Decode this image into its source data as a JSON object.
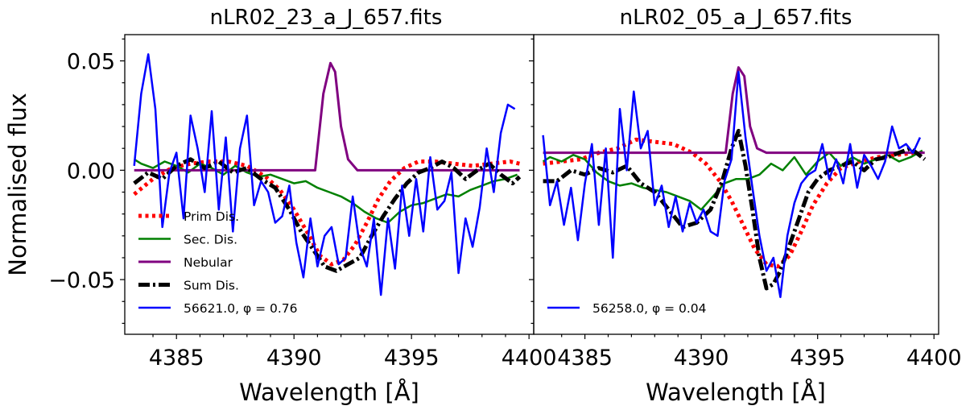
{
  "chart_data": [
    {
      "type": "line",
      "title": "nLR02_23_a_J_657.fits",
      "xlabel": "Wavelength [Å]",
      "ylabel": "Normalised flux",
      "xlim": [
        4382.8,
        4400.2
      ],
      "ylim": [
        -0.075,
        0.062
      ],
      "xticks": [
        4385,
        4390,
        4395,
        4400
      ],
      "xtick_labels": [
        "4385",
        "4390",
        "4395",
        "4400"
      ],
      "yticks": [
        0.05,
        0.0,
        -0.05
      ],
      "ytick_labels": [
        "0.05",
        "0.00",
        "−0.05"
      ],
      "legend_position": "lower-left",
      "series": [
        {
          "name": "Prim Dis.",
          "legend_label": "Prim Dis.",
          "color": "#ff0000",
          "style": "dotted",
          "width": 5,
          "x": [
            4383.2,
            4384.0,
            4384.8,
            4385.6,
            4386.4,
            4387.2,
            4388.0,
            4388.8,
            4389.4,
            4390.0,
            4390.6,
            4391.1,
            4391.6,
            4392.1,
            4392.6,
            4393.1,
            4393.6,
            4394.1,
            4394.7,
            4395.3,
            4396.0,
            4396.8,
            4397.6,
            4398.4,
            4399.2,
            4399.6
          ],
          "y": [
            -0.011,
            -0.004,
            0.001,
            0.003,
            0.004,
            0.004,
            0.002,
            -0.003,
            -0.009,
            -0.018,
            -0.029,
            -0.039,
            -0.043,
            -0.041,
            -0.034,
            -0.024,
            -0.013,
            -0.005,
            0.001,
            0.004,
            0.004,
            0.003,
            0.002,
            0.003,
            0.004,
            0.003
          ]
        },
        {
          "name": "Sec. Dis.",
          "legend_label": "Sec. Dis.",
          "color": "#008000",
          "style": "solid",
          "width": 2.5,
          "x": [
            4383.2,
            4383.5,
            4384.0,
            4384.5,
            4385.0,
            4385.5,
            4386.0,
            4386.5,
            4387.0,
            4387.5,
            4388.0,
            4388.5,
            4389.0,
            4389.5,
            4390.0,
            4390.5,
            4391.0,
            4391.5,
            4392.0,
            4392.5,
            4393.0,
            4393.5,
            4394.0,
            4394.5,
            4395.0,
            4395.5,
            4396.0,
            4396.5,
            4397.0,
            4397.5,
            4398.0,
            4398.5,
            4399.0,
            4399.5
          ],
          "y": [
            0.005,
            0.003,
            0.001,
            0.004,
            0.002,
            -0.001,
            0.003,
            0.001,
            -0.002,
            0.002,
            -0.001,
            -0.003,
            -0.002,
            -0.004,
            -0.006,
            -0.005,
            -0.008,
            -0.01,
            -0.012,
            -0.015,
            -0.019,
            -0.022,
            -0.024,
            -0.019,
            -0.016,
            -0.015,
            -0.013,
            -0.011,
            -0.012,
            -0.009,
            -0.007,
            -0.005,
            -0.004,
            -0.002
          ]
        },
        {
          "name": "Nebular",
          "legend_label": "Nebular",
          "color": "#800080",
          "style": "solid",
          "width": 3,
          "x": [
            4383.2,
            4390.9,
            4391.25,
            4391.55,
            4391.75,
            4392.0,
            4392.3,
            4392.7,
            4399.6
          ],
          "y": [
            0.0,
            0.0,
            0.035,
            0.049,
            0.045,
            0.02,
            0.005,
            0.0,
            0.0
          ]
        },
        {
          "name": "Sum Dis.",
          "legend_label": "Sum Dis.",
          "color": "#000000",
          "style": "dashdot",
          "width": 5,
          "x": [
            4383.2,
            4383.8,
            4384.4,
            4385.0,
            4385.6,
            4386.2,
            4386.8,
            4387.4,
            4388.0,
            4388.6,
            4389.2,
            4389.8,
            4390.3,
            4390.8,
            4391.3,
            4391.8,
            4392.3,
            4392.8,
            4393.3,
            4393.8,
            4394.3,
            4394.8,
            4395.3,
            4395.8,
            4396.3,
            4396.8,
            4397.3,
            4397.8,
            4398.3,
            4398.8,
            4399.3,
            4399.6
          ],
          "y": [
            -0.006,
            -0.001,
            -0.004,
            0.002,
            0.005,
            0.001,
            0.004,
            -0.001,
            0.001,
            -0.004,
            -0.008,
            -0.018,
            -0.028,
            -0.036,
            -0.044,
            -0.046,
            -0.043,
            -0.04,
            -0.03,
            -0.021,
            -0.013,
            -0.006,
            -0.001,
            0.001,
            0.004,
            0.001,
            -0.004,
            0.0,
            0.003,
            -0.002,
            -0.006,
            -0.003
          ]
        },
        {
          "name": "56621.0",
          "legend_label": "56621.0, φ = 0.76",
          "color": "#0000ff",
          "style": "solid",
          "width": 2.5,
          "x": [
            4383.2,
            4383.5,
            4383.8,
            4384.1,
            4384.4,
            4384.7,
            4385.0,
            4385.3,
            4385.6,
            4385.9,
            4386.2,
            4386.5,
            4386.8,
            4387.1,
            4387.4,
            4387.7,
            4388.0,
            4388.3,
            4388.6,
            4388.9,
            4389.2,
            4389.5,
            4389.8,
            4390.1,
            4390.4,
            4390.7,
            4391.0,
            4391.3,
            4391.6,
            4391.9,
            4392.2,
            4392.5,
            4392.8,
            4393.1,
            4393.4,
            4393.7,
            4394.0,
            4394.3,
            4394.6,
            4394.9,
            4395.2,
            4395.5,
            4395.8,
            4396.1,
            4396.4,
            4396.7,
            4397.0,
            4397.3,
            4397.6,
            4397.9,
            4398.2,
            4398.5,
            4398.8,
            4399.1,
            4399.4
          ],
          "y": [
            0.002,
            0.035,
            0.053,
            0.028,
            -0.026,
            -0.001,
            0.008,
            -0.022,
            0.025,
            0.01,
            -0.01,
            0.027,
            -0.018,
            0.015,
            -0.028,
            0.01,
            0.025,
            -0.016,
            -0.005,
            -0.01,
            -0.024,
            -0.021,
            -0.007,
            -0.033,
            -0.049,
            -0.022,
            -0.044,
            -0.03,
            -0.026,
            -0.043,
            -0.04,
            -0.012,
            -0.035,
            -0.044,
            -0.022,
            -0.057,
            -0.022,
            -0.045,
            -0.007,
            -0.03,
            -0.004,
            -0.028,
            0.006,
            -0.018,
            -0.014,
            -0.001,
            -0.047,
            -0.022,
            -0.035,
            -0.017,
            0.01,
            -0.01,
            0.017,
            0.03,
            0.028
          ]
        }
      ]
    },
    {
      "type": "line",
      "title": "nLR02_05_a_J_657.fits",
      "xlabel": "Wavelength [Å]",
      "ylabel": "",
      "xlim": [
        4382.8,
        4400.2
      ],
      "ylim": [
        -0.075,
        0.062
      ],
      "xticks": [
        4385,
        4390,
        4395,
        4400
      ],
      "xtick_labels": [
        "4385",
        "4390",
        "4395",
        "4400"
      ],
      "legend_position": "lower-left",
      "series": [
        {
          "name": "Prim Dis.",
          "color": "#ff0000",
          "style": "dotted",
          "width": 5,
          "x": [
            4383.2,
            4384.0,
            4384.8,
            4385.6,
            4386.4,
            4387.2,
            4388.0,
            4388.8,
            4389.6,
            4390.2,
            4390.8,
            4391.3,
            4391.8,
            4392.3,
            4392.8,
            4393.3,
            4393.8,
            4394.3,
            4394.8,
            4395.4,
            4396.0,
            4396.8,
            4397.6,
            4398.4,
            4399.2,
            4399.6
          ],
          "y": [
            0.003,
            0.004,
            0.005,
            0.008,
            0.01,
            0.014,
            0.013,
            0.012,
            0.008,
            0.003,
            -0.005,
            -0.014,
            -0.025,
            -0.036,
            -0.043,
            -0.044,
            -0.039,
            -0.028,
            -0.016,
            -0.006,
            0.001,
            0.004,
            0.006,
            0.007,
            0.008,
            0.007
          ]
        },
        {
          "name": "Sec. Dis.",
          "color": "#008000",
          "style": "solid",
          "width": 2.5,
          "x": [
            4383.2,
            4383.5,
            4384.0,
            4384.5,
            4385.0,
            4385.5,
            4386.0,
            4386.5,
            4387.0,
            4387.5,
            4388.0,
            4388.5,
            4389.0,
            4389.5,
            4390.0,
            4390.5,
            4391.0,
            4391.5,
            4392.0,
            4392.5,
            4393.0,
            4393.5,
            4394.0,
            4394.5,
            4395.0,
            4395.5,
            4396.0,
            4396.5,
            4397.0,
            4397.5,
            4398.0,
            4398.5,
            4399.0,
            4399.5
          ],
          "y": [
            0.004,
            0.006,
            0.004,
            0.007,
            0.005,
            -0.001,
            -0.005,
            -0.007,
            -0.006,
            -0.008,
            -0.009,
            -0.01,
            -0.012,
            -0.014,
            -0.018,
            -0.012,
            -0.006,
            -0.004,
            -0.004,
            -0.002,
            0.003,
            0.0,
            0.006,
            -0.002,
            0.004,
            0.008,
            0.002,
            0.006,
            0.003,
            0.005,
            0.007,
            0.004,
            0.006,
            0.009
          ]
        },
        {
          "name": "Nebular",
          "color": "#800080",
          "style": "solid",
          "width": 3,
          "x": [
            4383.2,
            4391.05,
            4391.35,
            4391.6,
            4391.85,
            4392.1,
            4392.4,
            4392.8,
            4399.6
          ],
          "y": [
            0.008,
            0.008,
            0.035,
            0.047,
            0.043,
            0.02,
            0.01,
            0.008,
            0.008
          ]
        },
        {
          "name": "Sum Dis.",
          "color": "#000000",
          "style": "dashdot",
          "width": 5,
          "x": [
            4383.2,
            4383.8,
            4384.4,
            4385.0,
            4385.6,
            4386.2,
            4386.8,
            4387.4,
            4388.0,
            4388.6,
            4389.2,
            4389.8,
            4390.4,
            4390.9,
            4391.3,
            4391.6,
            4391.9,
            4392.2,
            4392.5,
            4392.8,
            4393.1,
            4393.4,
            4393.8,
            4394.2,
            4394.6,
            4395.0,
            4395.5,
            4396.0,
            4396.5,
            4397.0,
            4397.5,
            4398.0,
            4398.5,
            4399.0,
            4399.6
          ],
          "y": [
            -0.005,
            -0.005,
            0.0,
            -0.002,
            0.001,
            -0.001,
            0.002,
            -0.006,
            -0.01,
            -0.018,
            -0.026,
            -0.024,
            -0.018,
            -0.005,
            0.01,
            0.018,
            0.002,
            -0.018,
            -0.04,
            -0.054,
            -0.052,
            -0.046,
            -0.034,
            -0.022,
            -0.01,
            -0.004,
            0.0,
            0.002,
            0.004,
            0.0,
            0.005,
            0.006,
            0.008,
            0.01,
            0.005
          ]
        },
        {
          "name": "56258.0",
          "legend_label": "56258.0, φ = 0.04",
          "color": "#0000ff",
          "style": "solid",
          "width": 2.5,
          "x": [
            4383.2,
            4383.5,
            4383.8,
            4384.1,
            4384.4,
            4384.7,
            4385.0,
            4385.3,
            4385.6,
            4385.9,
            4386.2,
            4386.5,
            4386.8,
            4387.1,
            4387.4,
            4387.7,
            4388.0,
            4388.3,
            4388.6,
            4388.9,
            4389.2,
            4389.5,
            4389.8,
            4390.1,
            4390.4,
            4390.7,
            4391.0,
            4391.3,
            4391.6,
            4391.9,
            4392.2,
            4392.5,
            4392.8,
            4393.1,
            4393.4,
            4393.7,
            4394.0,
            4394.3,
            4394.6,
            4394.9,
            4395.2,
            4395.5,
            4395.8,
            4396.1,
            4396.4,
            4396.7,
            4397.0,
            4397.3,
            4397.6,
            4397.9,
            4398.2,
            4398.5,
            4398.8,
            4399.1,
            4399.4
          ],
          "y": [
            0.016,
            -0.016,
            -0.005,
            -0.025,
            -0.008,
            -0.032,
            -0.006,
            0.012,
            -0.025,
            0.01,
            -0.04,
            0.028,
            0.0,
            0.036,
            0.01,
            0.018,
            -0.016,
            -0.007,
            -0.026,
            -0.012,
            -0.028,
            -0.015,
            -0.024,
            -0.018,
            -0.028,
            -0.03,
            -0.005,
            0.005,
            0.045,
            0.015,
            -0.008,
            -0.03,
            -0.046,
            -0.04,
            -0.058,
            -0.03,
            -0.015,
            -0.006,
            -0.002,
            0.0,
            0.012,
            -0.004,
            0.005,
            -0.006,
            0.012,
            -0.008,
            0.007,
            0.002,
            -0.004,
            0.004,
            0.02,
            0.01,
            0.012,
            0.008,
            0.015
          ]
        }
      ]
    }
  ]
}
